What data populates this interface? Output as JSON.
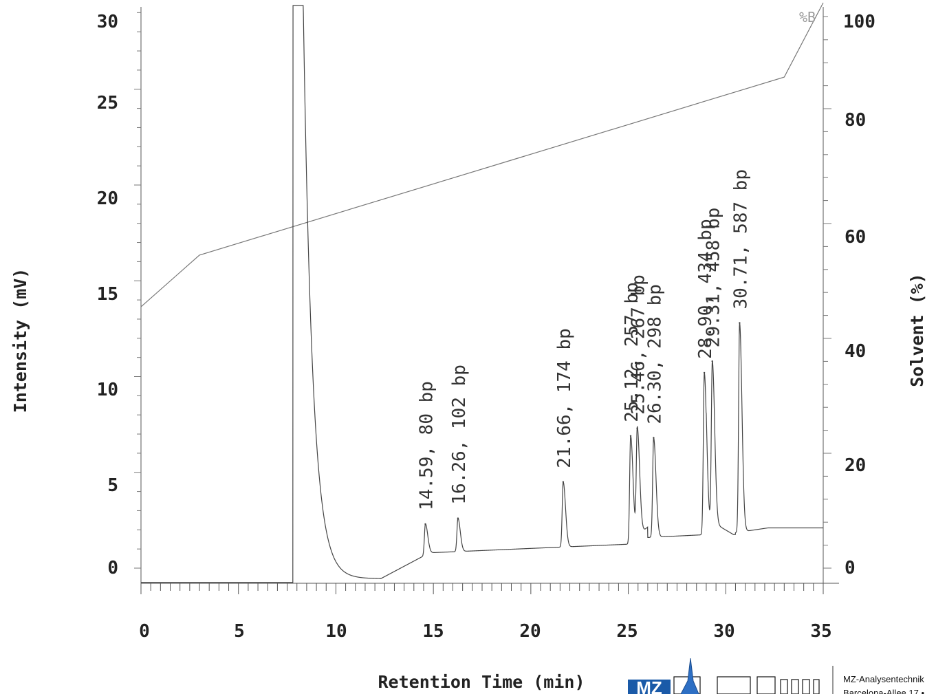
{
  "chart_data": {
    "type": "line",
    "xlabel": "Retention Time (min)",
    "ylabel": "Intensity (mV)",
    "y2label": "Solvent (%)",
    "solvent_marker": "%B",
    "xlim": [
      0,
      35
    ],
    "ylim": [
      -0.8,
      30.8
    ],
    "y2lim": [
      -4,
      103
    ],
    "x_ticks": [
      "0",
      "5",
      "10",
      "15",
      "20",
      "25",
      "30",
      "35"
    ],
    "y_ticks": [
      "0",
      "5",
      "10",
      "15",
      "20",
      "25",
      "30"
    ],
    "y2_ticks": [
      "0",
      "20",
      "40",
      "60",
      "80",
      "100"
    ],
    "grid": false,
    "series": [
      {
        "role": "chromatogram",
        "peaks": [
          {
            "x": 14.59,
            "y": 2.3,
            "label": "14.59, 80 bp"
          },
          {
            "x": 16.26,
            "y": 2.6,
            "label": "16.26, 102 bp"
          },
          {
            "x": 21.66,
            "y": 4.5,
            "label": "21.66, 174 bp"
          },
          {
            "x": 25.12,
            "y": 6.9,
            "label": "25.12, 257 bp"
          },
          {
            "x": 25.46,
            "y": 7.3,
            "label": "25.46, 267 bp"
          },
          {
            "x": 26.3,
            "y": 6.8,
            "label": "26.30, 298 bp"
          },
          {
            "x": 28.9,
            "y": 10.2,
            "label": "28.90, 434 bp"
          },
          {
            "x": 29.31,
            "y": 10.8,
            "label": "29.31, 458 bp"
          },
          {
            "x": 30.71,
            "y": 12.8,
            "label": "30.71, 587 bp"
          }
        ]
      },
      {
        "role": "solvent",
        "x": [
          0,
          3,
          33,
          35
        ],
        "y": [
          45.5,
          54.5,
          85.5,
          103
        ]
      }
    ]
  },
  "logo": {
    "brand": "MZ",
    "company_line1": "MZ-Analysentechnik",
    "company_line2": "Barcelona-Allee 17 •"
  }
}
